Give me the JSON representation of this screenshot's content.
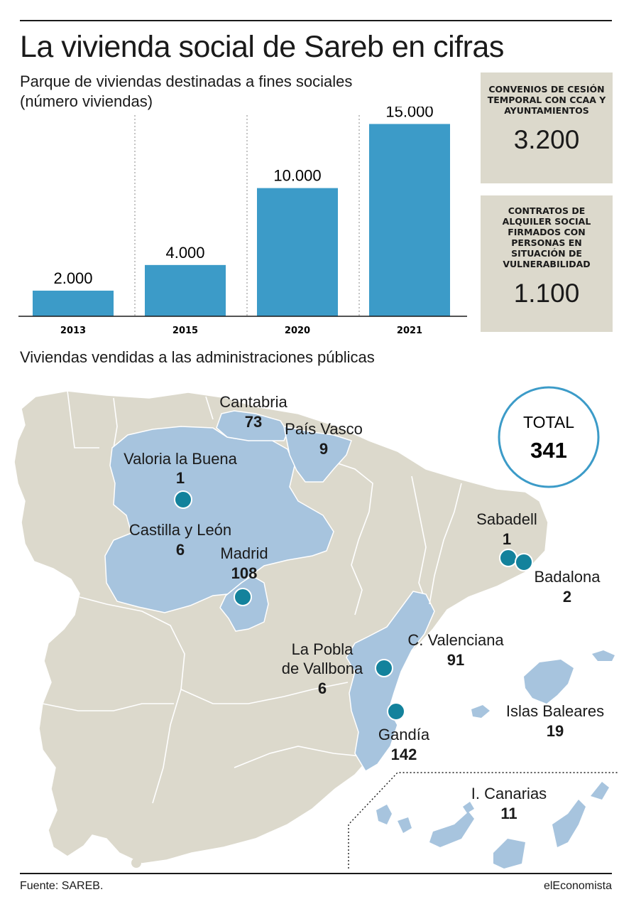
{
  "title": "La vivienda social de Sareb en cifras",
  "colors": {
    "bar": "#3c9bc8",
    "region_highlight": "#a7c4de",
    "region_base": "#dcd9cc",
    "dot": "#13829c",
    "circle": "#3c9bc8",
    "box": "#dcd9cc"
  },
  "chart_data": {
    "type": "bar",
    "title": "Parque de viviendas destinadas a fines sociales",
    "subtitle": "(número viviendas)",
    "categories": [
      "2013",
      "2015",
      "2020",
      "2021"
    ],
    "values": [
      2000,
      4000,
      10000,
      15000
    ],
    "value_labels": [
      "2.000",
      "4.000",
      "10.000",
      "15.000"
    ],
    "ylim": [
      0,
      15800
    ],
    "grid": false,
    "separators": "dotted-between-categories"
  },
  "stats": [
    {
      "label": "CONVENIOS DE CESIÓN TEMPORAL CON CCAA Y AYUNTAMIENTOS",
      "value": "3.200"
    },
    {
      "label": "CONTRATOS DE ALQUILER SOCIAL FIRMADOS CON PERSONAS EN SITUACIÓN DE VULNERABILIDAD",
      "value": "1.100"
    }
  ],
  "map": {
    "title": "Viviendas vendidas a las administraciones públicas",
    "total_label": "TOTAL",
    "total_value": "341",
    "labels": [
      {
        "name": "Cantabria",
        "value": "73"
      },
      {
        "name": "País Vasco",
        "value": "9"
      },
      {
        "name": "Valoria la Buena",
        "value": "1"
      },
      {
        "name": "Castilla y León",
        "value": "6"
      },
      {
        "name": "Madrid",
        "value": "108"
      },
      {
        "name": "Sabadell",
        "value": "1"
      },
      {
        "name": "Badalona",
        "value": "2"
      },
      {
        "name": "C. Valenciana",
        "value": "91"
      },
      {
        "name": "La Pobla",
        "name2": "de Vallbona",
        "value": "6"
      },
      {
        "name": "Islas Baleares",
        "value": "19"
      },
      {
        "name": "Gandía",
        "value": "142"
      },
      {
        "name": "I. Canarias",
        "value": "11"
      }
    ],
    "dots": [
      "valoria-la-buena",
      "madrid",
      "sabadell",
      "badalona",
      "la-pobla-de-vallbona",
      "gandia"
    ]
  },
  "footer": {
    "source": "Fuente: SAREB.",
    "brand": "elEconomista"
  }
}
